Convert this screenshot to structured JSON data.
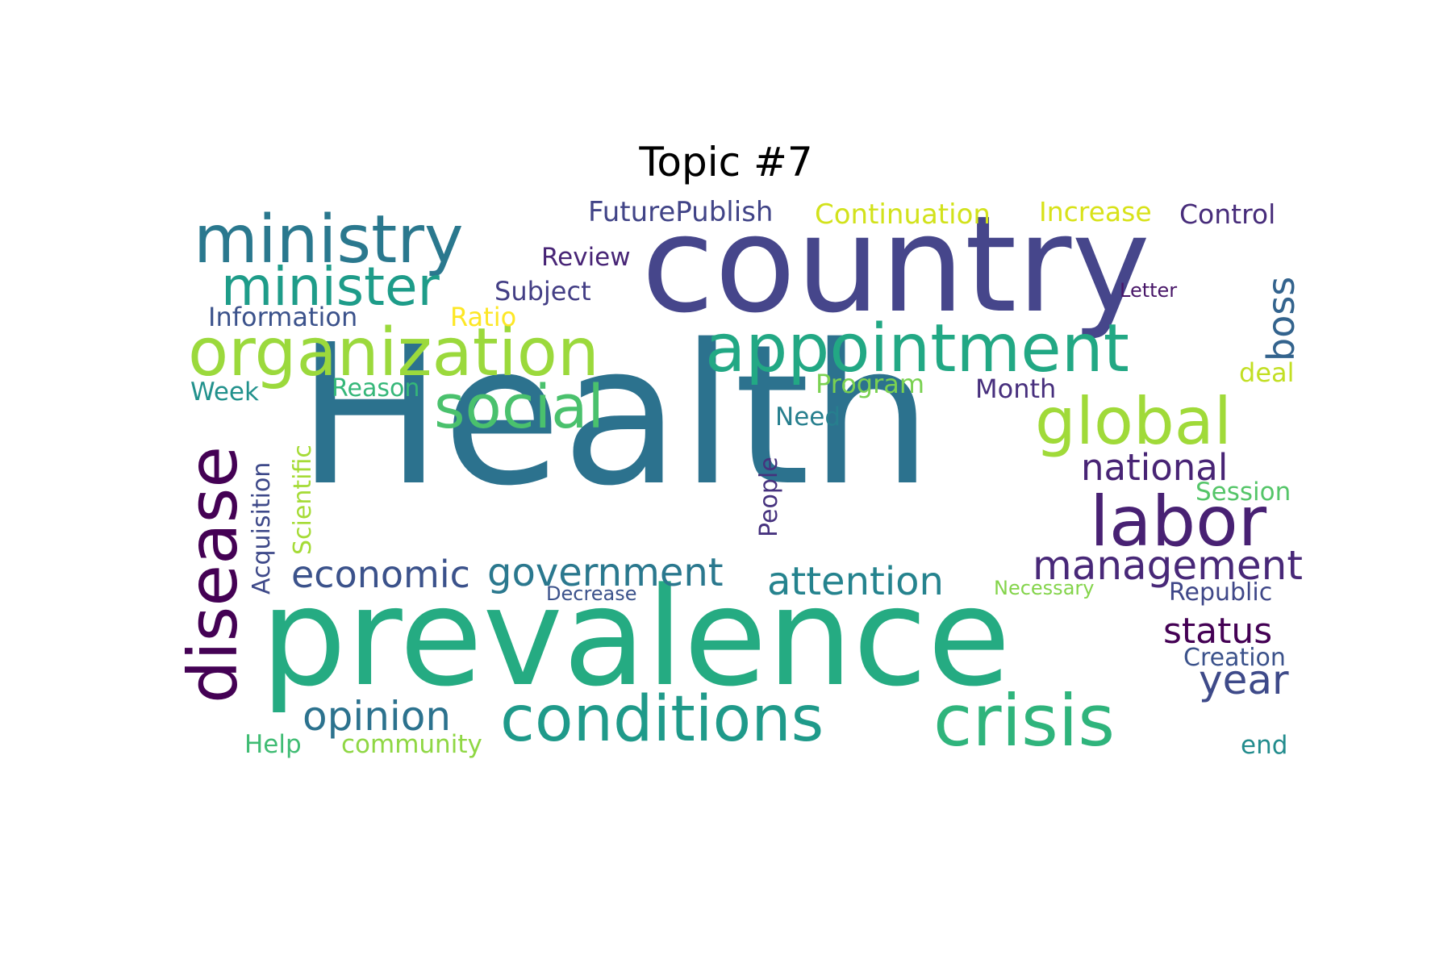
{
  "title": "Topic #7",
  "words": [
    {
      "text": "Health",
      "color": "#2c728e"
    },
    {
      "text": "prevalence",
      "color": "#25ab82"
    },
    {
      "text": "country",
      "color": "#46468b"
    },
    {
      "text": "conditions",
      "color": "#1f9a8a"
    },
    {
      "text": "crisis",
      "color": "#2fb47c"
    },
    {
      "text": "organization",
      "color": "#9bd93c"
    },
    {
      "text": "appointment",
      "color": "#22a884"
    },
    {
      "text": "ministry",
      "color": "#2a788e"
    },
    {
      "text": "minister",
      "color": "#1e9c89"
    },
    {
      "text": "disease",
      "color": "#440154"
    },
    {
      "text": "social",
      "color": "#4ac16d"
    },
    {
      "text": "global",
      "color": "#a0da39"
    },
    {
      "text": "labor",
      "color": "#482173"
    },
    {
      "text": "management",
      "color": "#482878"
    },
    {
      "text": "national",
      "color": "#482475"
    },
    {
      "text": "government",
      "color": "#2a788e"
    },
    {
      "text": "attention",
      "color": "#25838e"
    },
    {
      "text": "economic",
      "color": "#3b528b"
    },
    {
      "text": "opinion",
      "color": "#2c728e"
    },
    {
      "text": "status",
      "color": "#440154"
    },
    {
      "text": "year",
      "color": "#3e4a89"
    },
    {
      "text": "boss",
      "color": "#33638d"
    },
    {
      "text": "FuturePublish",
      "color": "#414487"
    },
    {
      "text": "Continuation",
      "color": "#d2e21b"
    },
    {
      "text": "Increase",
      "color": "#d8e219"
    },
    {
      "text": "Control",
      "color": "#472c7a"
    },
    {
      "text": "Review",
      "color": "#482576"
    },
    {
      "text": "Subject",
      "color": "#433e85"
    },
    {
      "text": "Letter",
      "color": "#481668"
    },
    {
      "text": "Information",
      "color": "#3b528b"
    },
    {
      "text": "Ratio",
      "color": "#fde725"
    },
    {
      "text": "Program",
      "color": "#7ad151"
    },
    {
      "text": "Month",
      "color": "#472f7d"
    },
    {
      "text": "deal",
      "color": "#c2df23"
    },
    {
      "text": "Week",
      "color": "#21918c"
    },
    {
      "text": "Reason",
      "color": "#35b779"
    },
    {
      "text": "Need",
      "color": "#277f8e"
    },
    {
      "text": "Acquisition",
      "color": "#3e4989"
    },
    {
      "text": "Scientific",
      "color": "#a5db36"
    },
    {
      "text": "People",
      "color": "#46327e"
    },
    {
      "text": "Session",
      "color": "#54c568"
    },
    {
      "text": "Decrease",
      "color": "#3b528b"
    },
    {
      "text": "Necessary",
      "color": "#84d44b"
    },
    {
      "text": "Republic",
      "color": "#3f4788"
    },
    {
      "text": "Creation",
      "color": "#3b528b"
    },
    {
      "text": "Help",
      "color": "#3fbc73"
    },
    {
      "text": "community",
      "color": "#8fd744"
    },
    {
      "text": "end",
      "color": "#228c8d"
    }
  ]
}
